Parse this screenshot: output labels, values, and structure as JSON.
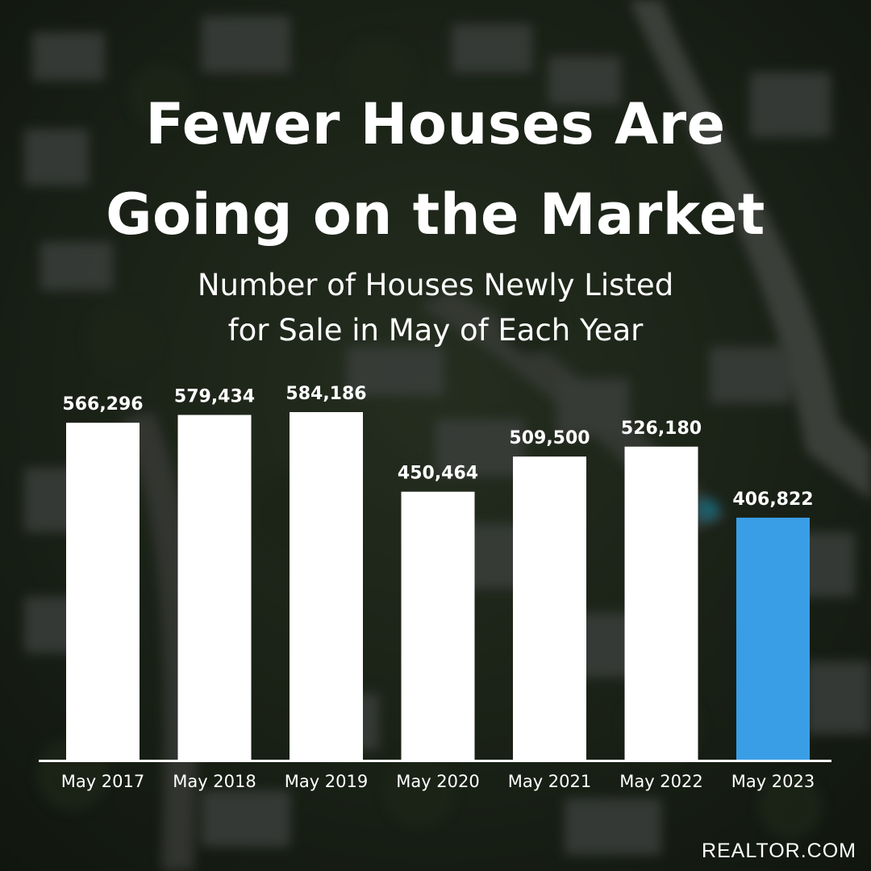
{
  "title_lines": [
    "Fewer Houses Are",
    "Going on the Market"
  ],
  "subtitle_lines": [
    "Number of Houses Newly Listed",
    "for Sale in May of Each Year"
  ],
  "source": "REALTOR.COM",
  "colors": {
    "bar_default": "#ffffff",
    "bar_highlight": "#3a9ee6",
    "axis": "#ffffff"
  },
  "chart_data": {
    "type": "bar",
    "title": "Fewer Houses Are Going on the Market",
    "subtitle": "Number of Houses Newly Listed for Sale in May of Each Year",
    "categories": [
      "May 2017",
      "May 2018",
      "May 2019",
      "May 2020",
      "May 2021",
      "May 2022",
      "May 2023"
    ],
    "values": [
      566296,
      579434,
      584186,
      450464,
      509500,
      526180,
      406822
    ],
    "labels": [
      "566,296",
      "579,434",
      "584,186",
      "450,464",
      "509,500",
      "526,180",
      "406,822"
    ],
    "highlight_index": 6,
    "ylim": [
      0,
      600000
    ],
    "xlabel": "",
    "ylabel": "",
    "grid": false,
    "legend": "none"
  }
}
